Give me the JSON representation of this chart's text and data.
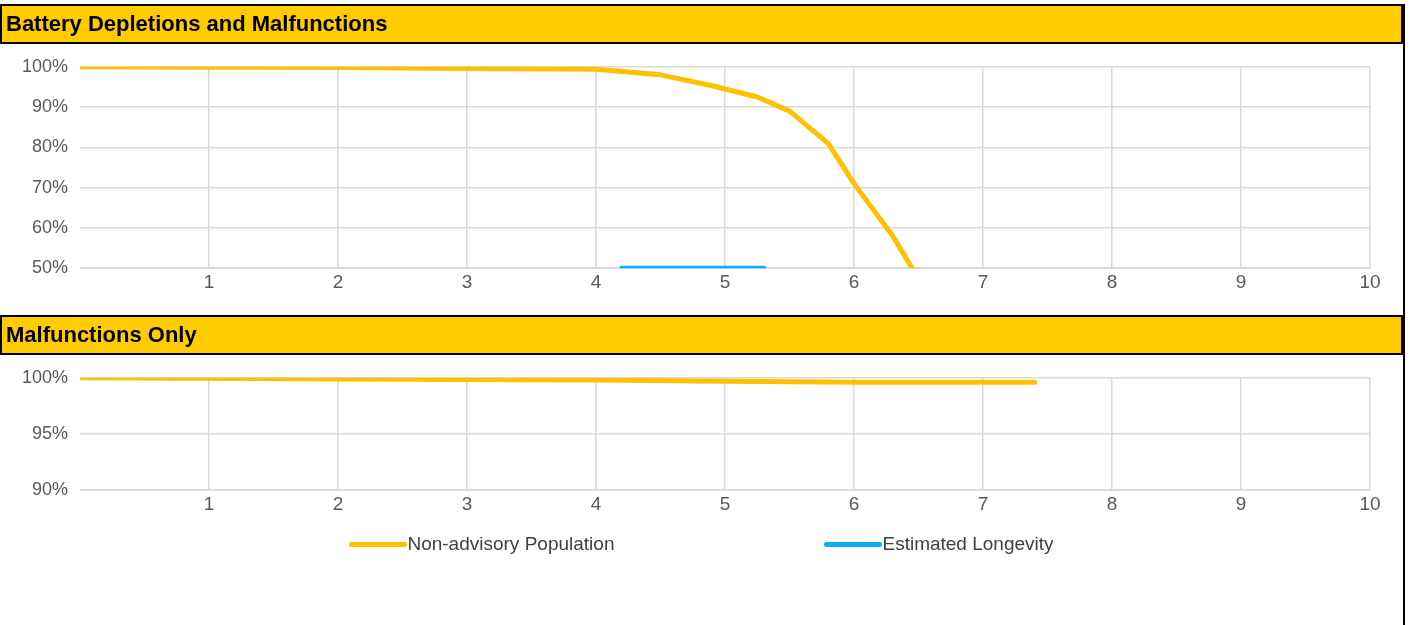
{
  "chart_data": [
    {
      "type": "line",
      "title": "Battery Depletions and Malfunctions",
      "series": [
        {
          "name": "Non-advisory Population",
          "color": "#ffc000",
          "x": [
            0,
            1,
            2,
            3,
            4,
            4.5,
            4.9,
            5.25,
            5.5,
            5.8,
            6,
            6.3,
            6.45
          ],
          "values": [
            100,
            99.9,
            99.8,
            99.6,
            99.4,
            98,
            95.3,
            92.5,
            89,
            81,
            71,
            58,
            50
          ]
        },
        {
          "name": "Estimated Longevity",
          "color": "#00b0f0",
          "x": [
            4.2,
            5.3
          ],
          "values": [
            50,
            50
          ]
        }
      ],
      "xlim": [
        0,
        10
      ],
      "xticks": [
        1,
        2,
        3,
        4,
        5,
        6,
        7,
        8,
        9,
        10
      ],
      "ylim": [
        50,
        100
      ],
      "yticks": [
        {
          "value": 50,
          "label": "50%"
        },
        {
          "value": 60,
          "label": "60%"
        },
        {
          "value": 70,
          "label": "70%"
        },
        {
          "value": 80,
          "label": "80%"
        },
        {
          "value": 90,
          "label": "90%"
        },
        {
          "value": 100,
          "label": "100%"
        }
      ],
      "grid": true,
      "legend": "bottom",
      "marker": "none",
      "line_style": "solid"
    },
    {
      "type": "line",
      "title": "Malfunctions Only",
      "series": [
        {
          "color": "#ffc000",
          "x": [
            0,
            2,
            4,
            5,
            6,
            7.4
          ],
          "values": [
            100,
            99.9,
            99.8,
            99.7,
            99.6,
            99.6
          ]
        }
      ],
      "xlim": [
        0,
        10
      ],
      "xticks": [
        1,
        2,
        3,
        4,
        5,
        6,
        7,
        8,
        9,
        10
      ],
      "ylim": [
        90,
        100
      ],
      "yticks": [
        {
          "value": 90,
          "label": "90%"
        },
        {
          "value": 95,
          "label": "95%"
        },
        {
          "value": 100,
          "label": "100%"
        }
      ],
      "grid": true,
      "marker": "none",
      "line_style": "solid"
    }
  ]
}
